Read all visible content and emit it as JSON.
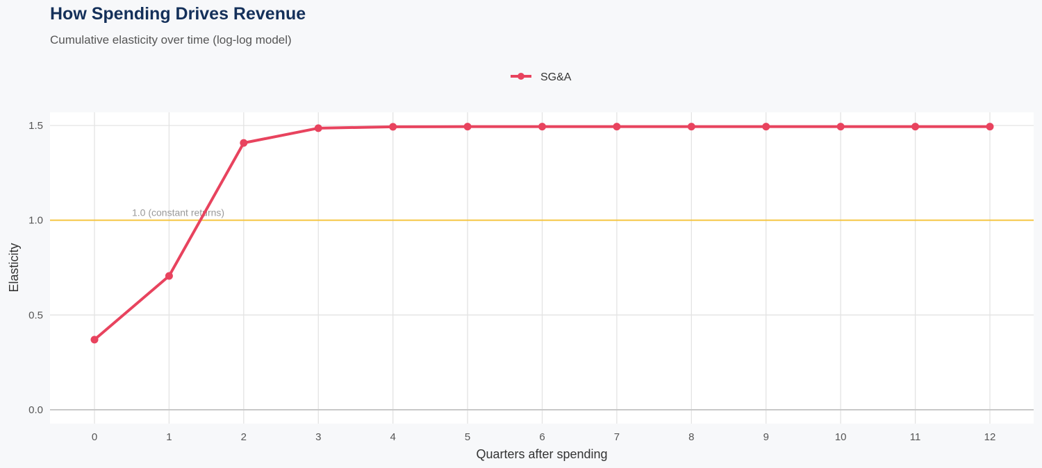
{
  "chart_data": {
    "type": "line",
    "title": "How Spending Drives Revenue",
    "subtitle": "Cumulative elasticity over time (log-log model)",
    "xlabel": "Quarters after spending",
    "ylabel": "Elasticity",
    "x": [
      0,
      1,
      2,
      3,
      4,
      5,
      6,
      7,
      8,
      9,
      10,
      11,
      12
    ],
    "xlim": [
      -0.6,
      12.6
    ],
    "ylim": [
      -0.07,
      1.57
    ],
    "yticks": [
      0.0,
      0.5,
      1.0,
      1.5
    ],
    "ytick_labels": [
      "0.0",
      "0.5",
      "1.0",
      "1.5"
    ],
    "xtick_labels": [
      "0",
      "1",
      "2",
      "3",
      "4",
      "5",
      "6",
      "7",
      "8",
      "9",
      "10",
      "11",
      "12"
    ],
    "grid": true,
    "legend_position": "top",
    "series": [
      {
        "name": "SG&A",
        "color": "#e8435e",
        "values": [
          0.37,
          0.706,
          1.408,
          1.486,
          1.493,
          1.494,
          1.494,
          1.494,
          1.494,
          1.494,
          1.494,
          1.494,
          1.494
        ]
      }
    ],
    "reference_line": {
      "y": 1.0,
      "label": "1.0 (constant returns)",
      "color": "#f5c542"
    }
  }
}
